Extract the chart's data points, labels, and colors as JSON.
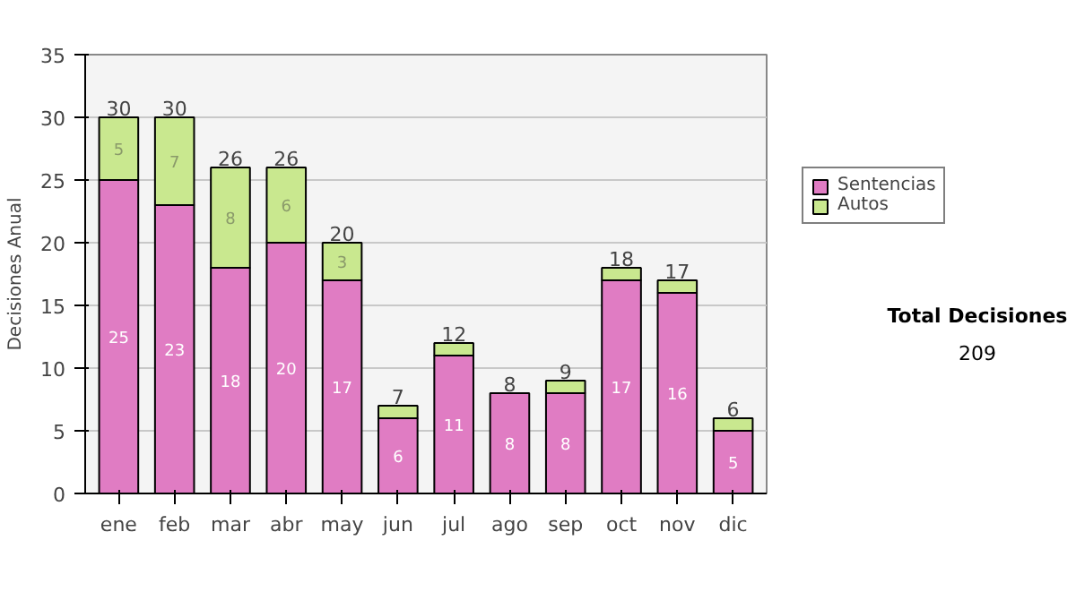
{
  "chart_data": {
    "type": "bar",
    "stacked": true,
    "ylabel": "Decisiones Anual",
    "categories": [
      "ene",
      "feb",
      "mar",
      "abr",
      "may",
      "jun",
      "jul",
      "ago",
      "sep",
      "oct",
      "nov",
      "dic"
    ],
    "series": [
      {
        "name": "Sentencias",
        "color": "#e07cc3",
        "values": [
          25,
          23,
          18,
          20,
          17,
          6,
          11,
          8,
          8,
          17,
          16,
          5
        ],
        "value_labels": [
          "25",
          "23",
          "18",
          "20",
          "17",
          "6",
          "11",
          "8",
          "8",
          "17",
          "16",
          "5"
        ]
      },
      {
        "name": "Autos",
        "color": "#c9e88f",
        "values": [
          5,
          7,
          8,
          6,
          3,
          1,
          1,
          0,
          1,
          1,
          1,
          1
        ],
        "value_labels": [
          "5",
          "7",
          "8",
          "6",
          "3",
          null,
          null,
          null,
          null,
          null,
          null,
          null
        ]
      }
    ],
    "totals": [
      "30",
      "30",
      "26",
      "26",
      "20",
      "7",
      "12",
      "8",
      "9",
      "18",
      "17",
      "6"
    ],
    "ylim": [
      0,
      35
    ],
    "yticks": [
      0,
      5,
      10,
      15,
      20,
      25,
      30,
      35
    ],
    "grid": "y",
    "legend": "right",
    "annotations": [
      "Total Decisiones",
      "209"
    ]
  }
}
